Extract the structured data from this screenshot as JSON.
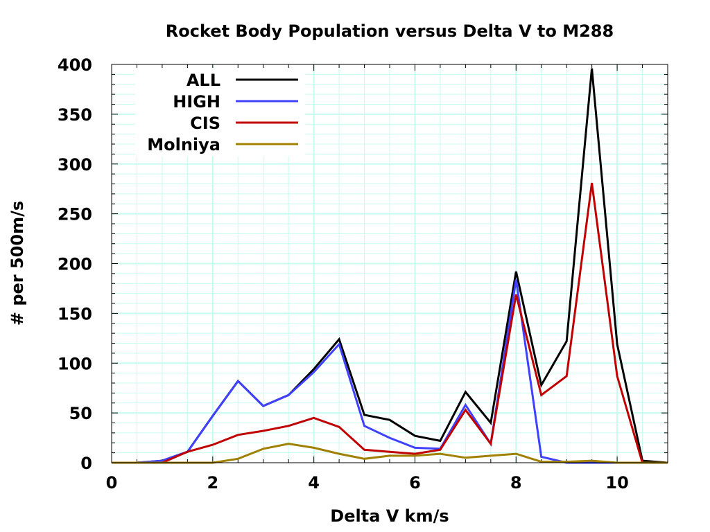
{
  "chart_data": {
    "type": "line",
    "title": "Rocket Body Population versus Delta V to M288",
    "xlabel": "Delta V km/s",
    "ylabel": "# per 500m/s",
    "xlim": [
      0,
      11
    ],
    "ylim": [
      0,
      400
    ],
    "grid": true,
    "legend_position": "top-left",
    "x_ticks": [
      0,
      2,
      4,
      6,
      8,
      10
    ],
    "x_tick_labels": [
      "0",
      "2",
      "4",
      "6",
      "8",
      "10"
    ],
    "y_ticks": [
      0,
      50,
      100,
      150,
      200,
      250,
      300,
      350,
      400
    ],
    "y_tick_labels": [
      "0",
      "50",
      "100",
      "150",
      "200",
      "250",
      "300",
      "350",
      "400"
    ],
    "x": [
      0,
      0.5,
      1,
      1.5,
      2,
      2.5,
      3,
      3.5,
      4,
      4.5,
      5,
      5.5,
      6,
      6.5,
      7,
      7.5,
      8,
      8.5,
      9,
      9.5,
      10,
      10.5,
      11
    ],
    "series": [
      {
        "name": "ALL",
        "color": "#000000",
        "values": [
          0,
          0,
          2,
          11,
          47,
          82,
          57,
          68,
          94,
          124,
          48,
          43,
          27,
          22,
          71,
          40,
          192,
          78,
          122,
          396,
          119,
          2,
          0
        ]
      },
      {
        "name": "HIGH",
        "color": "#4040ff",
        "values": [
          0,
          0,
          2,
          11,
          47,
          82,
          57,
          68,
          91,
          119,
          37,
          25,
          15,
          14,
          58,
          19,
          184,
          6,
          0,
          0,
          0,
          0,
          0
        ]
      },
      {
        "name": "CIS",
        "color": "#c00000",
        "values": [
          0,
          0,
          0,
          11,
          18,
          28,
          32,
          37,
          45,
          36,
          13,
          11,
          9,
          13,
          53,
          19,
          169,
          68,
          87,
          281,
          87,
          0,
          0
        ]
      },
      {
        "name": "Molniya",
        "color": "#a08000",
        "values": [
          0,
          0,
          0,
          0,
          0,
          4,
          14,
          19,
          15,
          9,
          4,
          7,
          7,
          9,
          5,
          7,
          9,
          1,
          1,
          2,
          0,
          0,
          0
        ]
      }
    ]
  }
}
